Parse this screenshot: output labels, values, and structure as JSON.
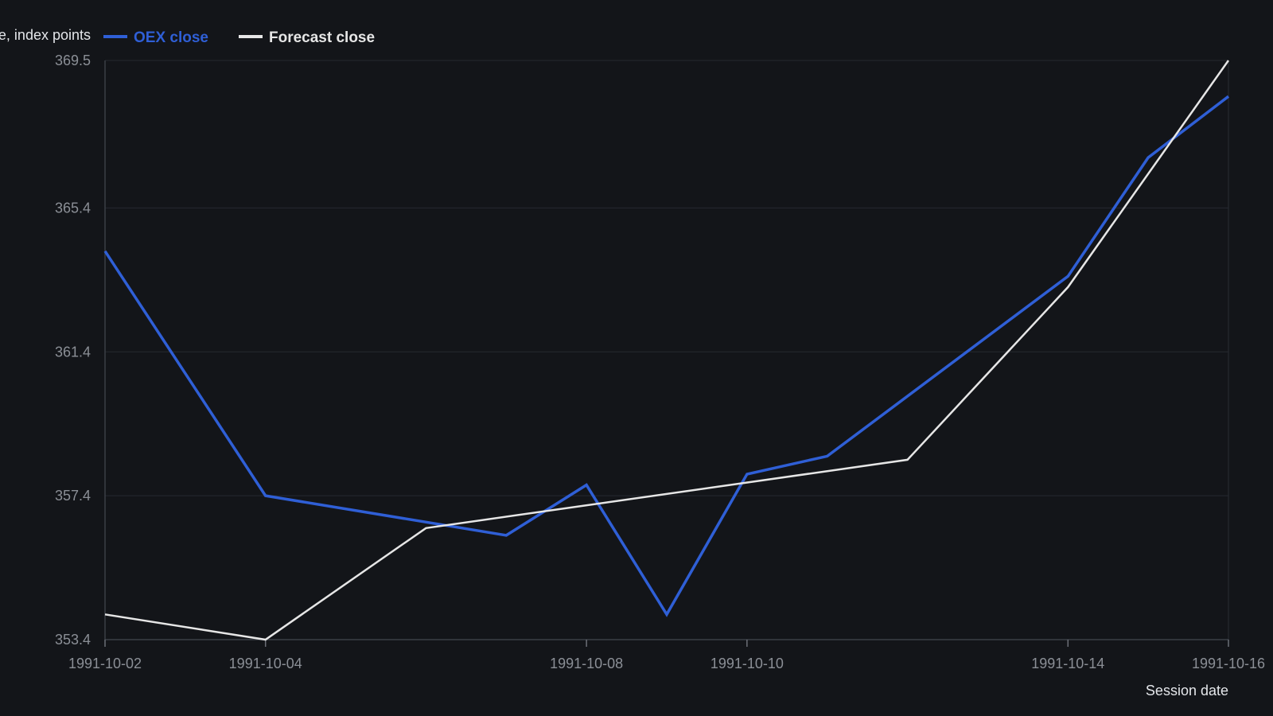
{
  "chart_data": {
    "type": "line",
    "title": "",
    "xlabel": "Session date",
    "ylabel": "Close, index points",
    "ylim": [
      353.4,
      369.5
    ],
    "yticks": [
      "353.4",
      "357.4",
      "361.4",
      "365.4",
      "369.5"
    ],
    "xticks": [
      "1991-10-02",
      "1991-10-04",
      "1991-10-08",
      "1991-10-10",
      "1991-10-14",
      "1991-10-16"
    ],
    "xlim": [
      "1991-10-02",
      "1991-10-16"
    ],
    "grid": true,
    "legend_position": "top-left",
    "series": [
      {
        "name": "OEX close",
        "color": "#2f5fd6",
        "x": [
          "1991-10-02",
          "1991-10-03",
          "1991-10-04",
          "1991-10-07",
          "1991-10-08",
          "1991-10-09",
          "1991-10-10",
          "1991-10-11",
          "1991-10-14",
          "1991-10-15",
          "1991-10-16"
        ],
        "values": [
          364.2,
          360.8,
          357.4,
          356.3,
          357.7,
          354.1,
          358.0,
          358.5,
          363.5,
          366.8,
          368.5
        ]
      },
      {
        "name": "Forecast close",
        "color": "#e6e6e6",
        "x": [
          "1991-10-02",
          "1991-10-04",
          "1991-10-06",
          "1991-10-12",
          "1991-10-14",
          "1991-10-16"
        ],
        "values": [
          354.1,
          353.4,
          356.5,
          358.4,
          363.2,
          369.5
        ]
      }
    ]
  }
}
